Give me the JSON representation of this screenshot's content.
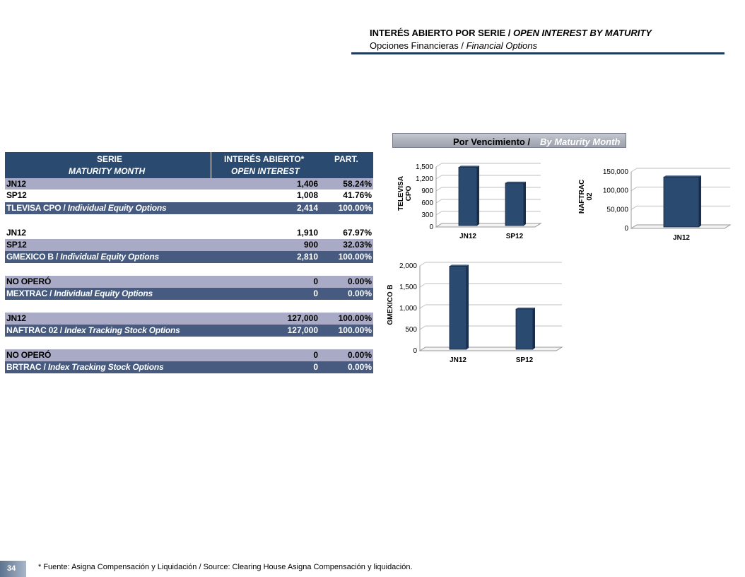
{
  "header": {
    "title_es": "INTERÉS ABIERTO POR SERIE /",
    "title_en": "OPEN INTEREST BY MATURITY",
    "subtitle_es": "Opciones Financieras /",
    "subtitle_en": "Financial Options"
  },
  "table": {
    "header": {
      "col1_line1": "SERIE",
      "col1_line2": "MATURITY MONTH",
      "col2_line1": "INTERÉS ABIERTO*",
      "col2_line2": "OPEN INTEREST",
      "col3": "PART."
    },
    "rows": [
      {
        "label": "JN12",
        "label_it": "",
        "oi": "1,406",
        "part": "58.24%"
      },
      {
        "label": "SP12",
        "label_it": "",
        "oi": "1,008",
        "part": "41.76%"
      },
      {
        "label": "TLEVISA CPO /",
        "label_it": "Individual Equity Options",
        "oi": "2,414",
        "part": "100.00%"
      },
      {
        "label": "JN12",
        "label_it": "",
        "oi": "1,910",
        "part": "67.97%"
      },
      {
        "label": "SP12",
        "label_it": "",
        "oi": "900",
        "part": "32.03%"
      },
      {
        "label": "GMEXICO B /",
        "label_it": "Individual Equity Options",
        "oi": "2,810",
        "part": "100.00%"
      },
      {
        "label": "NO OPERÓ",
        "label_it": "",
        "oi": "0",
        "part": "0.00%"
      },
      {
        "label": "MEXTRAC /",
        "label_it": "Individual Equity Options",
        "oi": "0",
        "part": "0.00%"
      },
      {
        "label": "JN12",
        "label_it": "",
        "oi": "127,000",
        "part": "100.00%"
      },
      {
        "label": "NAFTRAC 02 /",
        "label_it": "Index Tracking Stock Options",
        "oi": "127,000",
        "part": "100.00%"
      },
      {
        "label": "NO OPERÓ",
        "label_it": "",
        "oi": "0",
        "part": "0.00%"
      },
      {
        "label": "BRTRAC /",
        "label_it": "Index Tracking Stock Options",
        "oi": "0",
        "part": "0.00%"
      }
    ]
  },
  "banner": {
    "es": "Por Vencimiento /",
    "en": "By Maturity Month"
  },
  "chart_data": [
    {
      "type": "bar",
      "title": "",
      "ylabel": "TELEVISA CPO",
      "categories": [
        "JN12",
        "SP12"
      ],
      "values": [
        1406,
        1008
      ],
      "ylim": [
        0,
        1500
      ],
      "yticks": [
        "0",
        "300",
        "600",
        "900",
        "1,200",
        "1,500"
      ],
      "bar_color": "#2b4a70"
    },
    {
      "type": "bar",
      "title": "",
      "ylabel": "NAFTRAC 02",
      "categories": [
        "JN12"
      ],
      "values": [
        127000
      ],
      "ylim": [
        0,
        150000
      ],
      "yticks": [
        "0",
        "50,000",
        "100,000",
        "150,000"
      ],
      "bar_color": "#2b4a70"
    },
    {
      "type": "bar",
      "title": "",
      "ylabel": "GMEXICO B",
      "categories": [
        "JN12",
        "SP12"
      ],
      "values": [
        1910,
        900
      ],
      "ylim": [
        0,
        2000
      ],
      "yticks": [
        "0",
        "500",
        "1,000",
        "1,500",
        "2,000"
      ],
      "bar_color": "#2b4a70"
    }
  ],
  "footer": {
    "page_number": "34",
    "footnote": "* Fuente: Asigna Compensación y Liquidación / Source: Clearing House Asigna Compensación y liquidación."
  }
}
